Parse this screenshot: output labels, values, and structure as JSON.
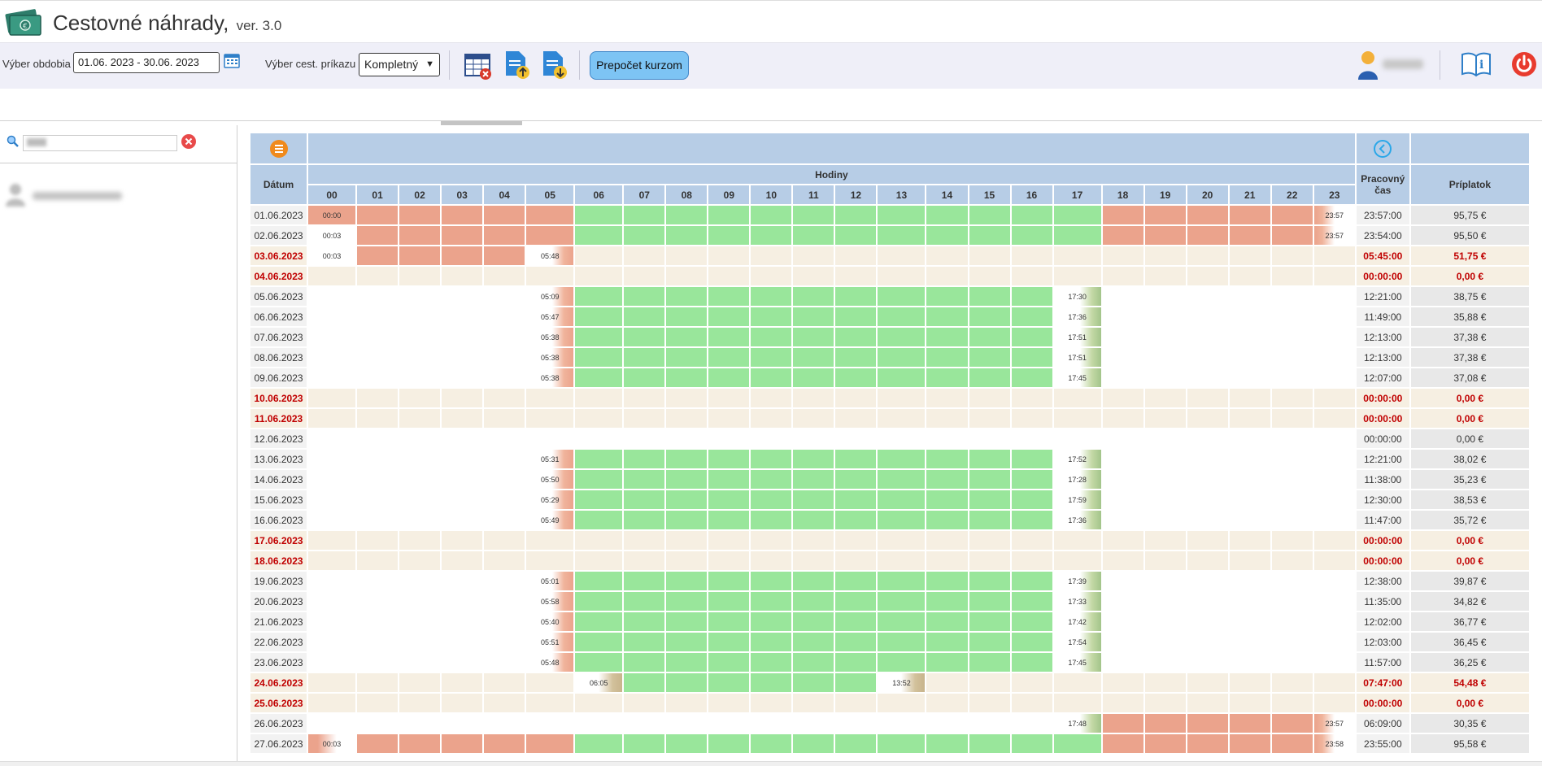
{
  "app": {
    "title": "Cestovné náhrady,",
    "version": "ver. 3.0"
  },
  "toolbar": {
    "period_label": "Výber obdobia",
    "period_value": "01.06. 2023 - 30.06. 2023",
    "order_label": "Výber cest. príkazu",
    "order_value": "Kompletný",
    "recalc_label": "Prepočet kurzom",
    "icons": [
      "calendar-icon",
      "delete-table-icon",
      "export-upload-icon",
      "import-download-icon",
      "user-icon",
      "manual-icon",
      "power-icon"
    ]
  },
  "colors": {
    "trip_hours": "#99e69b",
    "overnight_hours": "#eba38c",
    "weekend_row": "#f6efe2",
    "weekend_text": "#c00000",
    "header_bg": "#b7cde6",
    "recalc_button": "#7dc4f4"
  },
  "grid": {
    "header": {
      "date": "Dátum",
      "hours": "Hodiny",
      "work_time": "Pracovný čas",
      "bonus": "Príplatok"
    },
    "hours": [
      "00",
      "01",
      "02",
      "03",
      "04",
      "05",
      "06",
      "07",
      "08",
      "09",
      "10",
      "11",
      "12",
      "13",
      "14",
      "15",
      "16",
      "17",
      "18",
      "19",
      "20",
      "21",
      "22",
      "23"
    ],
    "rows": [
      {
        "date": "01.06.2023",
        "weekend": false,
        "cells": "RRRRRRGGGGGGGGGGGGRRRRRX",
        "labels": {
          "0": "00:00",
          "23": "23:57"
        },
        "work": "23:57:00",
        "bonus": "95,75 €"
      },
      {
        "date": "02.06.2023",
        "weekend": false,
        "cells": "WRRRRRGGGGGGGGGGGGRRRRRX",
        "labels": {
          "0": "00:03",
          "23": "23:57"
        },
        "work": "23:54:00",
        "bonus": "95,50 €"
      },
      {
        "date": "03.06.2023",
        "weekend": true,
        "cells": "WRRRRZBBBBBBBBBBBBBBBBBB",
        "labels": {
          "0": "00:03",
          "5": "05:48"
        },
        "work": "05:45:00",
        "bonus": "51,75 €"
      },
      {
        "date": "04.06.2023",
        "weekend": true,
        "cells": "BBBBBBBBBBBBBBBBBBBBBBBB",
        "labels": {},
        "work": "00:00:00",
        "bonus": "0,00 €"
      },
      {
        "date": "05.06.2023",
        "weekend": false,
        "cells": "WWWWWSGGGGGGGGGGGEWWWWWW",
        "labels": {
          "5": "05:09",
          "17": "17:30"
        },
        "work": "12:21:00",
        "bonus": "38,75 €"
      },
      {
        "date": "06.06.2023",
        "weekend": false,
        "cells": "WWWWWSGGGGGGGGGGGEWWWWWW",
        "labels": {
          "5": "05:47",
          "17": "17:36"
        },
        "work": "11:49:00",
        "bonus": "35,88 €"
      },
      {
        "date": "07.06.2023",
        "weekend": false,
        "cells": "WWWWWSGGGGGGGGGGGEWWWWWW",
        "labels": {
          "5": "05:38",
          "17": "17:51"
        },
        "work": "12:13:00",
        "bonus": "37,38 €"
      },
      {
        "date": "08.06.2023",
        "weekend": false,
        "cells": "WWWWWSGGGGGGGGGGGEWWWWWW",
        "labels": {
          "5": "05:38",
          "17": "17:51"
        },
        "work": "12:13:00",
        "bonus": "37,38 €"
      },
      {
        "date": "09.06.2023",
        "weekend": false,
        "cells": "WWWWWSGGGGGGGGGGGEWWWWWW",
        "labels": {
          "5": "05:38",
          "17": "17:45"
        },
        "work": "12:07:00",
        "bonus": "37,08 €"
      },
      {
        "date": "10.06.2023",
        "weekend": true,
        "cells": "BBBBBBBBBBBBBBBBBBBBBBBB",
        "labels": {},
        "work": "00:00:00",
        "bonus": "0,00 €"
      },
      {
        "date": "11.06.2023",
        "weekend": true,
        "cells": "BBBBBBBBBBBBBBBBBBBBBBBB",
        "labels": {},
        "work": "00:00:00",
        "bonus": "0,00 €"
      },
      {
        "date": "12.06.2023",
        "weekend": false,
        "cells": "WWWWWWWWWWWWWWWWWWWWWWWW",
        "labels": {},
        "work": "00:00:00",
        "bonus": "0,00 €"
      },
      {
        "date": "13.06.2023",
        "weekend": false,
        "cells": "WWWWWSGGGGGGGGGGGEWWWWWW",
        "labels": {
          "5": "05:31",
          "17": "17:52"
        },
        "work": "12:21:00",
        "bonus": "38,02 €"
      },
      {
        "date": "14.06.2023",
        "weekend": false,
        "cells": "WWWWWSGGGGGGGGGGGEWWWWWW",
        "labels": {
          "5": "05:50",
          "17": "17:28"
        },
        "work": "11:38:00",
        "bonus": "35,23 €"
      },
      {
        "date": "15.06.2023",
        "weekend": false,
        "cells": "WWWWWSGGGGGGGGGGGEWWWWWW",
        "labels": {
          "5": "05:29",
          "17": "17:59"
        },
        "work": "12:30:00",
        "bonus": "38,53 €"
      },
      {
        "date": "16.06.2023",
        "weekend": false,
        "cells": "WWWWWSGGGGGGGGGGGEWWWWWW",
        "labels": {
          "5": "05:49",
          "17": "17:36"
        },
        "work": "11:47:00",
        "bonus": "35,72 €"
      },
      {
        "date": "17.06.2023",
        "weekend": true,
        "cells": "BBBBBBBBBBBBBBBBBBBBBBBB",
        "labels": {},
        "work": "00:00:00",
        "bonus": "0,00 €"
      },
      {
        "date": "18.06.2023",
        "weekend": true,
        "cells": "BBBBBBBBBBBBBBBBBBBBBBBB",
        "labels": {},
        "work": "00:00:00",
        "bonus": "0,00 €"
      },
      {
        "date": "19.06.2023",
        "weekend": false,
        "cells": "WWWWWSGGGGGGGGGGGEWWWWWW",
        "labels": {
          "5": "05:01",
          "17": "17:39"
        },
        "work": "12:38:00",
        "bonus": "39,87 €"
      },
      {
        "date": "20.06.2023",
        "weekend": false,
        "cells": "WWWWWSGGGGGGGGGGGEWWWWWW",
        "labels": {
          "5": "05:58",
          "17": "17:33"
        },
        "work": "11:35:00",
        "bonus": "34,82 €"
      },
      {
        "date": "21.06.2023",
        "weekend": false,
        "cells": "WWWWWSGGGGGGGGGGGEWWWWWW",
        "labels": {
          "5": "05:40",
          "17": "17:42"
        },
        "work": "12:02:00",
        "bonus": "36,77 €"
      },
      {
        "date": "22.06.2023",
        "weekend": false,
        "cells": "WWWWWSGGGGGGGGGGGEWWWWWW",
        "labels": {
          "5": "05:51",
          "17": "17:54"
        },
        "work": "12:03:00",
        "bonus": "36,45 €"
      },
      {
        "date": "23.06.2023",
        "weekend": false,
        "cells": "WWWWWSGGGGGGGGGGGEWWWWWW",
        "labels": {
          "5": "05:48",
          "17": "17:45"
        },
        "work": "11:57:00",
        "bonus": "36,25 €"
      },
      {
        "date": "24.06.2023",
        "weekend": true,
        "cells": "BBBBBBKGGGGGGQBBBBBBBBBB",
        "labels": {
          "6": "06:05",
          "13": "13:52"
        },
        "work": "07:47:00",
        "bonus": "54,48 €"
      },
      {
        "date": "25.06.2023",
        "weekend": true,
        "cells": "BBBBBBBBBBBBBBBBBBBBBBBB",
        "labels": {},
        "work": "00:00:00",
        "bonus": "0,00 €"
      },
      {
        "date": "26.06.2023",
        "weekend": false,
        "cells": "WWWWWWWWWWWWWWWWWPRRRRRX",
        "labels": {
          "17": "17:48",
          "23": "23:57"
        },
        "work": "06:09:00",
        "bonus": "30,35 €"
      },
      {
        "date": "27.06.2023",
        "weekend": false,
        "cells": "VRRRRRGGGGGGGGGGGGRRRRRX",
        "labels": {
          "0": "00:03",
          "23": "23:58"
        },
        "work": "23:55:00",
        "bonus": "95,58 €"
      }
    ]
  }
}
